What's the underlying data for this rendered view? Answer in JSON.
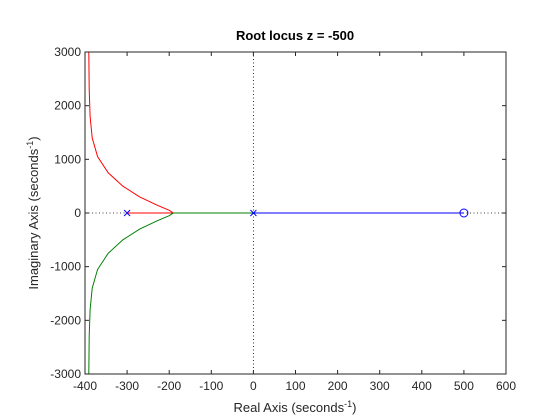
{
  "chart_data": {
    "type": "line",
    "title": "Root locus z = -500",
    "xlabel": "Real Axis (seconds",
    "ylabel": "Imaginary Axis (seconds",
    "unit_exponent": "-1",
    "unit_close": ")",
    "xlim": [
      -400,
      600
    ],
    "ylim": [
      -3000,
      3000
    ],
    "xticks": [
      -400,
      -300,
      -200,
      -100,
      0,
      100,
      200,
      300,
      400,
      500,
      600
    ],
    "yticks": [
      -3000,
      -2000,
      -1000,
      0,
      1000,
      2000,
      3000
    ],
    "xtick_labels": [
      "-400",
      "-300",
      "-200",
      "-100",
      "0",
      "100",
      "200",
      "300",
      "400",
      "500",
      "600"
    ],
    "ytick_labels": [
      "-3000",
      "-2000",
      "-1000",
      "0",
      "1000",
      "2000",
      "3000"
    ],
    "grid": false,
    "reference_lines": [
      {
        "orientation": "horizontal",
        "value": 0
      },
      {
        "orientation": "vertical",
        "value": 0
      }
    ],
    "poles": [
      {
        "x": -300,
        "y": 0
      },
      {
        "x": 0,
        "y": 0
      }
    ],
    "zeros": [
      {
        "x": 500,
        "y": 0
      }
    ],
    "series": [
      {
        "color": "#ff0000",
        "points": [
          [
            -300,
            0
          ],
          [
            -190,
            0
          ],
          [
            -200,
            50
          ],
          [
            -230,
            150
          ],
          [
            -270,
            300
          ],
          [
            -310,
            500
          ],
          [
            -345,
            750
          ],
          [
            -370,
            1050
          ],
          [
            -383,
            1400
          ],
          [
            -388,
            1800
          ],
          [
            -390,
            2300
          ],
          [
            -391,
            3000
          ]
        ]
      },
      {
        "color": "#008000",
        "points": [
          [
            0,
            0
          ],
          [
            -190,
            0
          ],
          [
            -200,
            -50
          ],
          [
            -230,
            -150
          ],
          [
            -270,
            -300
          ],
          [
            -310,
            -500
          ],
          [
            -345,
            -750
          ],
          [
            -370,
            -1050
          ],
          [
            -383,
            -1400
          ],
          [
            -388,
            -1800
          ],
          [
            -390,
            -2300
          ],
          [
            -391,
            -3000
          ]
        ]
      },
      {
        "color": "#0000ff",
        "points": [
          [
            0,
            0
          ],
          [
            500,
            0
          ]
        ]
      }
    ],
    "colors": {
      "pole_marker": "#0000ff",
      "zero_marker": "#0000ff",
      "axes": "#262626",
      "reference": "#000000"
    }
  }
}
